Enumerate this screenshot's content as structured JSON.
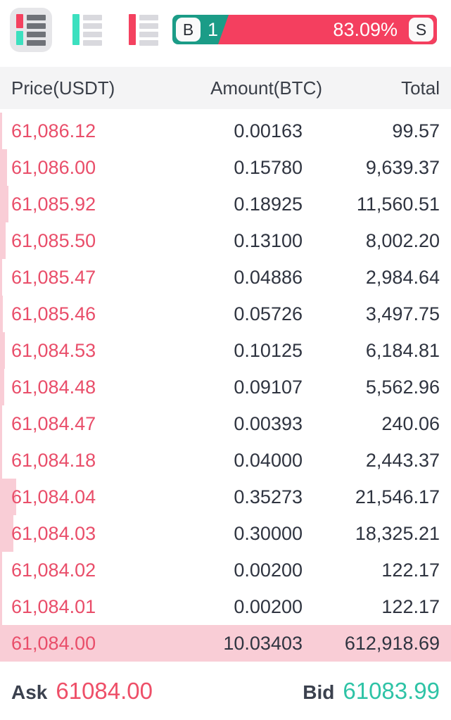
{
  "toolbar": {
    "view_modes": [
      {
        "icon": "orderbook-split-icon",
        "label": "buy-sell-combined-view",
        "active": true
      },
      {
        "icon": "orderbook-buys-icon",
        "label": "buys-only-view",
        "active": false
      },
      {
        "icon": "orderbook-sells-icon",
        "label": "sells-only-view",
        "active": false
      }
    ]
  },
  "ratio": {
    "buy_label": "B",
    "buy_visible_text": "1",
    "sell_pct": "83.09%",
    "sell_label": "S"
  },
  "table": {
    "columns": [
      "Price(USDT)",
      "Amount(BTC)",
      "Total"
    ]
  },
  "order_book": {
    "max_amount": 10.03403,
    "rows": [
      {
        "price": "61,086.12",
        "amount": "0.00163",
        "total": "99.57"
      },
      {
        "price": "61,086.00",
        "amount": "0.15780",
        "total": "9,639.37"
      },
      {
        "price": "61,085.92",
        "amount": "0.18925",
        "total": "11,560.51"
      },
      {
        "price": "61,085.50",
        "amount": "0.13100",
        "total": "8,002.20"
      },
      {
        "price": "61,085.47",
        "amount": "0.04886",
        "total": "2,984.64"
      },
      {
        "price": "61,085.46",
        "amount": "0.05726",
        "total": "3,497.75"
      },
      {
        "price": "61,084.53",
        "amount": "0.10125",
        "total": "6,184.81"
      },
      {
        "price": "61,084.48",
        "amount": "0.09107",
        "total": "5,562.96"
      },
      {
        "price": "61,084.47",
        "amount": "0.00393",
        "total": "240.06"
      },
      {
        "price": "61,084.18",
        "amount": "0.04000",
        "total": "2,443.37"
      },
      {
        "price": "61,084.04",
        "amount": "0.35273",
        "total": "21,546.17"
      },
      {
        "price": "61,084.03",
        "amount": "0.30000",
        "total": "18,325.21"
      },
      {
        "price": "61,084.02",
        "amount": "0.00200",
        "total": "122.17"
      },
      {
        "price": "61,084.01",
        "amount": "0.00200",
        "total": "122.17"
      },
      {
        "price": "61,084.00",
        "amount": "10.03403",
        "total": "612,918.69"
      }
    ]
  },
  "footer": {
    "ask_label": "Ask",
    "ask_price": "61084.00",
    "bid_label": "Bid",
    "bid_price": "61083.99"
  },
  "colors": {
    "sell_red": "#f43f5e",
    "buy_teal": "#1b9c87",
    "price_red": "#e94e6a",
    "bid_teal": "#2ec3a6",
    "depth_pink": "#f9cdd6",
    "header_bg": "#f4f4f5",
    "text_dark": "#2f3440"
  }
}
